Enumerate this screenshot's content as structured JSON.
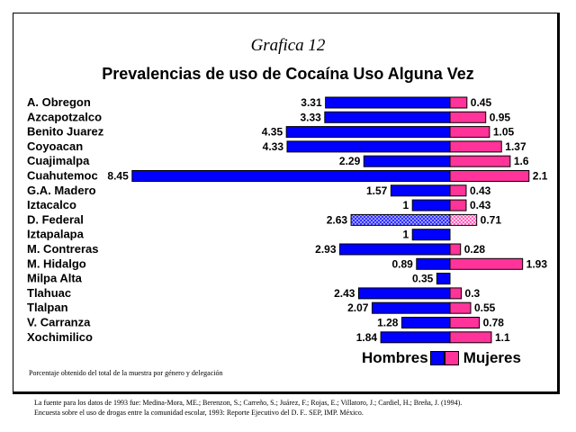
{
  "chart_data": {
    "type": "bar",
    "title": "Grafica 12",
    "subtitle": "Prevalencias de uso de Cocaína Uso Alguna Vez",
    "categories": [
      "A. Obregon",
      "Azcapotzalco",
      "Benito Juarez",
      "Coyoacan",
      "Cuajimalpa",
      "Cuahutemoc",
      "G.A. Madero",
      "Iztacalco",
      "D. Federal",
      "Iztapalapa",
      "M. Contreras",
      "M. Hidalgo",
      "Milpa Alta",
      "Tlahuac",
      "Tlalpan",
      "V. Carranza",
      "Xochimilico"
    ],
    "series": [
      {
        "name": "Hombres",
        "values": [
          3.31,
          3.33,
          4.35,
          4.33,
          2.29,
          8.45,
          1.57,
          1,
          2.63,
          1,
          2.93,
          0.89,
          0.35,
          2.43,
          2.07,
          1.28,
          1.84
        ]
      },
      {
        "name": "Mujeres",
        "values": [
          0.45,
          0.95,
          1.05,
          1.37,
          1.6,
          2.1,
          0.43,
          0.43,
          0.71,
          null,
          0.28,
          1.93,
          null,
          0.3,
          0.55,
          0.78,
          1.1
        ]
      }
    ],
    "value_labels": {
      "hombres": [
        "3.31",
        "3.33",
        "4.35",
        "4.33",
        "2.29",
        "8.45",
        "1.57",
        "1",
        "2.63",
        "1",
        "2.93",
        "0.89",
        "0.35",
        "2.43",
        "2.07",
        "1.28",
        "1.84"
      ],
      "mujeres": [
        "0.45",
        "0.95",
        "1.05",
        "1.37",
        "1.6",
        "2.1",
        "0.43",
        "0.43",
        "0.71",
        "",
        "0.28",
        "1.93",
        "",
        "0.3",
        "0.55",
        "0.78",
        "1.1"
      ]
    },
    "highlight_category": "D. Federal",
    "orientation": "horizontal-diverging",
    "legend_placement": "bottom-right",
    "grid": false
  },
  "colors": {
    "hombres": "#0000ff",
    "mujeres": "#ff3399"
  },
  "legend": {
    "hombres_label": "Hombres",
    "mujeres_label": "Mujeres"
  },
  "note": "Porcentaje obtenido del total de la muestra por género y delegación",
  "footer": {
    "line1": "La fuente para los datos de 1993 fue: Medina-Mora, ME.; Berenzon, S.; Carreño, S.; Juárez, F.; Rojas, E.; Villatoro, J.; Cardiel, H.; Breña, J. (1994).",
    "line2": "Encuesta sobre el uso de drogas entre la comunidad escolar, 1993: Reporte Ejecutivo del D. F.. SEP, IMP. México."
  }
}
